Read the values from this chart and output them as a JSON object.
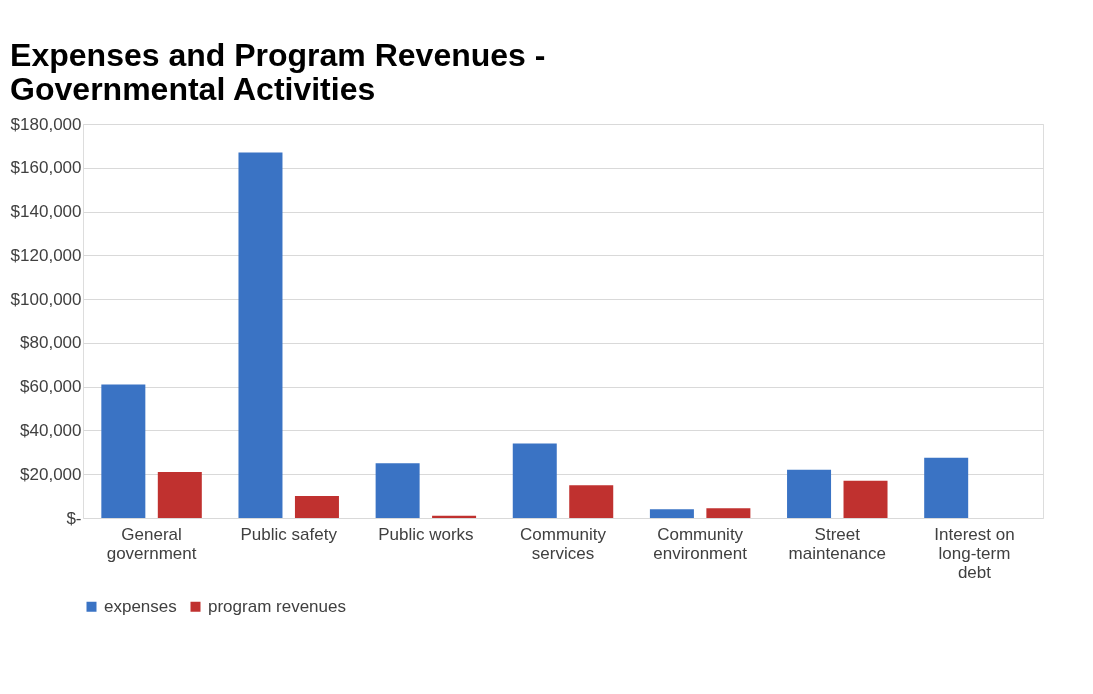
{
  "chart_data": {
    "type": "bar",
    "title": "Expenses and Program Revenues - Governmental Activities",
    "categories": [
      "General government",
      "Public safety",
      "Public works",
      "Community services",
      "Community environment",
      "Street maintenance",
      "Interest on long-term debt"
    ],
    "series": [
      {
        "name": "expenses",
        "color": "#3a73c4",
        "values": [
          61000,
          167000,
          25000,
          34000,
          4000,
          22000,
          27500
        ]
      },
      {
        "name": "program revenues",
        "color": "#c0312f",
        "values": [
          21000,
          10000,
          1000,
          15000,
          4500,
          17000,
          null
        ]
      }
    ],
    "ylim": [
      0,
      180000
    ],
    "yticks": [
      {
        "value": 0,
        "label": "$-"
      },
      {
        "value": 20000,
        "label": "$20,000"
      },
      {
        "value": 40000,
        "label": "$40,000"
      },
      {
        "value": 60000,
        "label": "$60,000"
      },
      {
        "value": 80000,
        "label": "$80,000"
      },
      {
        "value": 100000,
        "label": "$100,000"
      },
      {
        "value": 120000,
        "label": "$120,000"
      },
      {
        "value": 140000,
        "label": "$140,000"
      },
      {
        "value": 160000,
        "label": "$160,000"
      },
      {
        "value": 180000,
        "label": "$180,000"
      }
    ],
    "grid": "y",
    "legend": "bottom"
  }
}
